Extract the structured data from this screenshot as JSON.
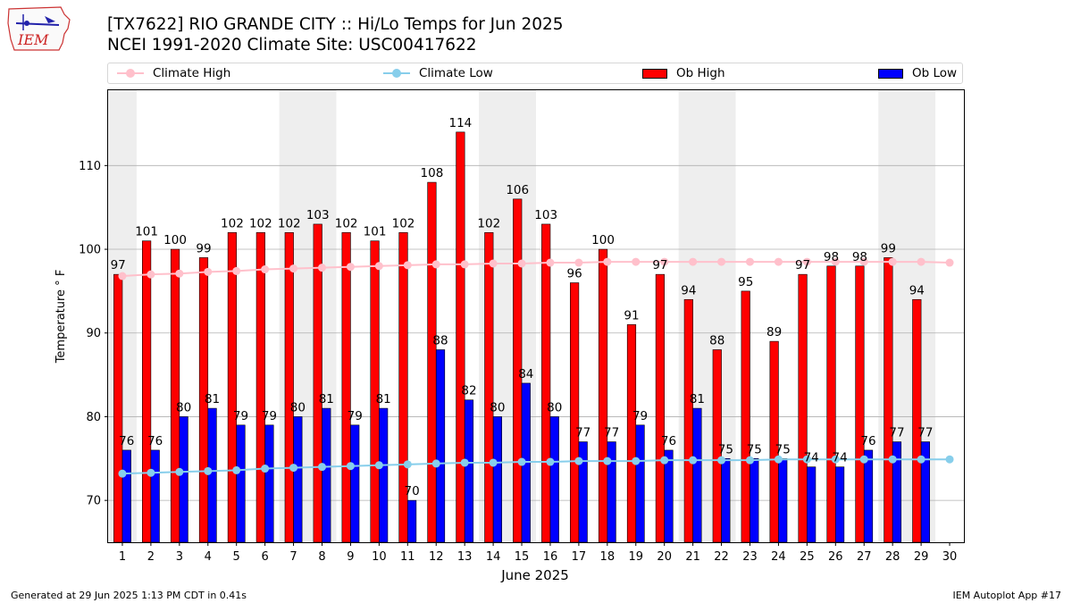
{
  "title_line1": "[TX7622] RIO GRANDE CITY :: Hi/Lo Temps for Jun 2025",
  "title_line2": "NCEI 1991-2020 Climate Site: USC00417622",
  "logo_text": "IEM",
  "footer_left": "Generated at 29 Jun 2025 1:13 PM CDT in 0.41s",
  "footer_right": "IEM Autoplot App #17",
  "colors": {
    "climate_high": "#ffc0cb",
    "climate_low": "#87ceeb",
    "ob_high": "#ff0000",
    "ob_low": "#0000ff",
    "weekend_shade": "#eeeeee",
    "grid": "#b0b0b0"
  },
  "legend": {
    "climate_high": "Climate High",
    "climate_low": "Climate Low",
    "ob_high": "Ob High",
    "ob_low": "Ob Low"
  },
  "chart_data": {
    "type": "bar",
    "xlabel": "June 2025",
    "ylabel": "Temperature ° F",
    "xlim": [
      0.5,
      30.5
    ],
    "ylim": [
      65,
      119
    ],
    "yticks": [
      70,
      80,
      90,
      100,
      110
    ],
    "days": [
      1,
      2,
      3,
      4,
      5,
      6,
      7,
      8,
      9,
      10,
      11,
      12,
      13,
      14,
      15,
      16,
      17,
      18,
      19,
      20,
      21,
      22,
      23,
      24,
      25,
      26,
      27,
      28,
      29,
      30
    ],
    "shaded_ranges": [
      [
        1,
        1
      ],
      [
        7,
        8
      ],
      [
        14,
        15
      ],
      [
        21,
        22
      ],
      [
        28,
        29
      ]
    ],
    "grid": "horizontal",
    "legend_position": "top",
    "series": [
      {
        "name": "Ob High",
        "kind": "bar",
        "values": [
          97,
          101,
          100,
          99,
          102,
          102,
          102,
          103,
          102,
          101,
          102,
          108,
          114,
          102,
          106,
          103,
          96,
          100,
          91,
          97,
          94,
          88,
          95,
          89,
          97,
          98,
          98,
          99,
          94
        ]
      },
      {
        "name": "Ob Low",
        "kind": "bar",
        "values": [
          76,
          76,
          80,
          81,
          79,
          79,
          80,
          81,
          79,
          81,
          70,
          88,
          82,
          80,
          84,
          80,
          77,
          77,
          79,
          76,
          81,
          75,
          75,
          75,
          74,
          74,
          76,
          77,
          77
        ]
      },
      {
        "name": "Climate High",
        "kind": "line",
        "values": [
          96.8,
          97.0,
          97.1,
          97.3,
          97.4,
          97.6,
          97.7,
          97.8,
          97.9,
          98.0,
          98.1,
          98.2,
          98.2,
          98.3,
          98.3,
          98.4,
          98.4,
          98.5,
          98.5,
          98.5,
          98.5,
          98.5,
          98.5,
          98.5,
          98.5,
          98.5,
          98.5,
          98.5,
          98.5,
          98.4
        ]
      },
      {
        "name": "Climate Low",
        "kind": "line",
        "values": [
          73.2,
          73.3,
          73.4,
          73.5,
          73.6,
          73.8,
          73.9,
          74.0,
          74.1,
          74.2,
          74.3,
          74.4,
          74.5,
          74.5,
          74.6,
          74.6,
          74.7,
          74.7,
          74.7,
          74.8,
          74.8,
          74.8,
          74.8,
          74.9,
          74.9,
          74.9,
          74.9,
          74.9,
          74.9,
          74.9
        ]
      }
    ]
  }
}
